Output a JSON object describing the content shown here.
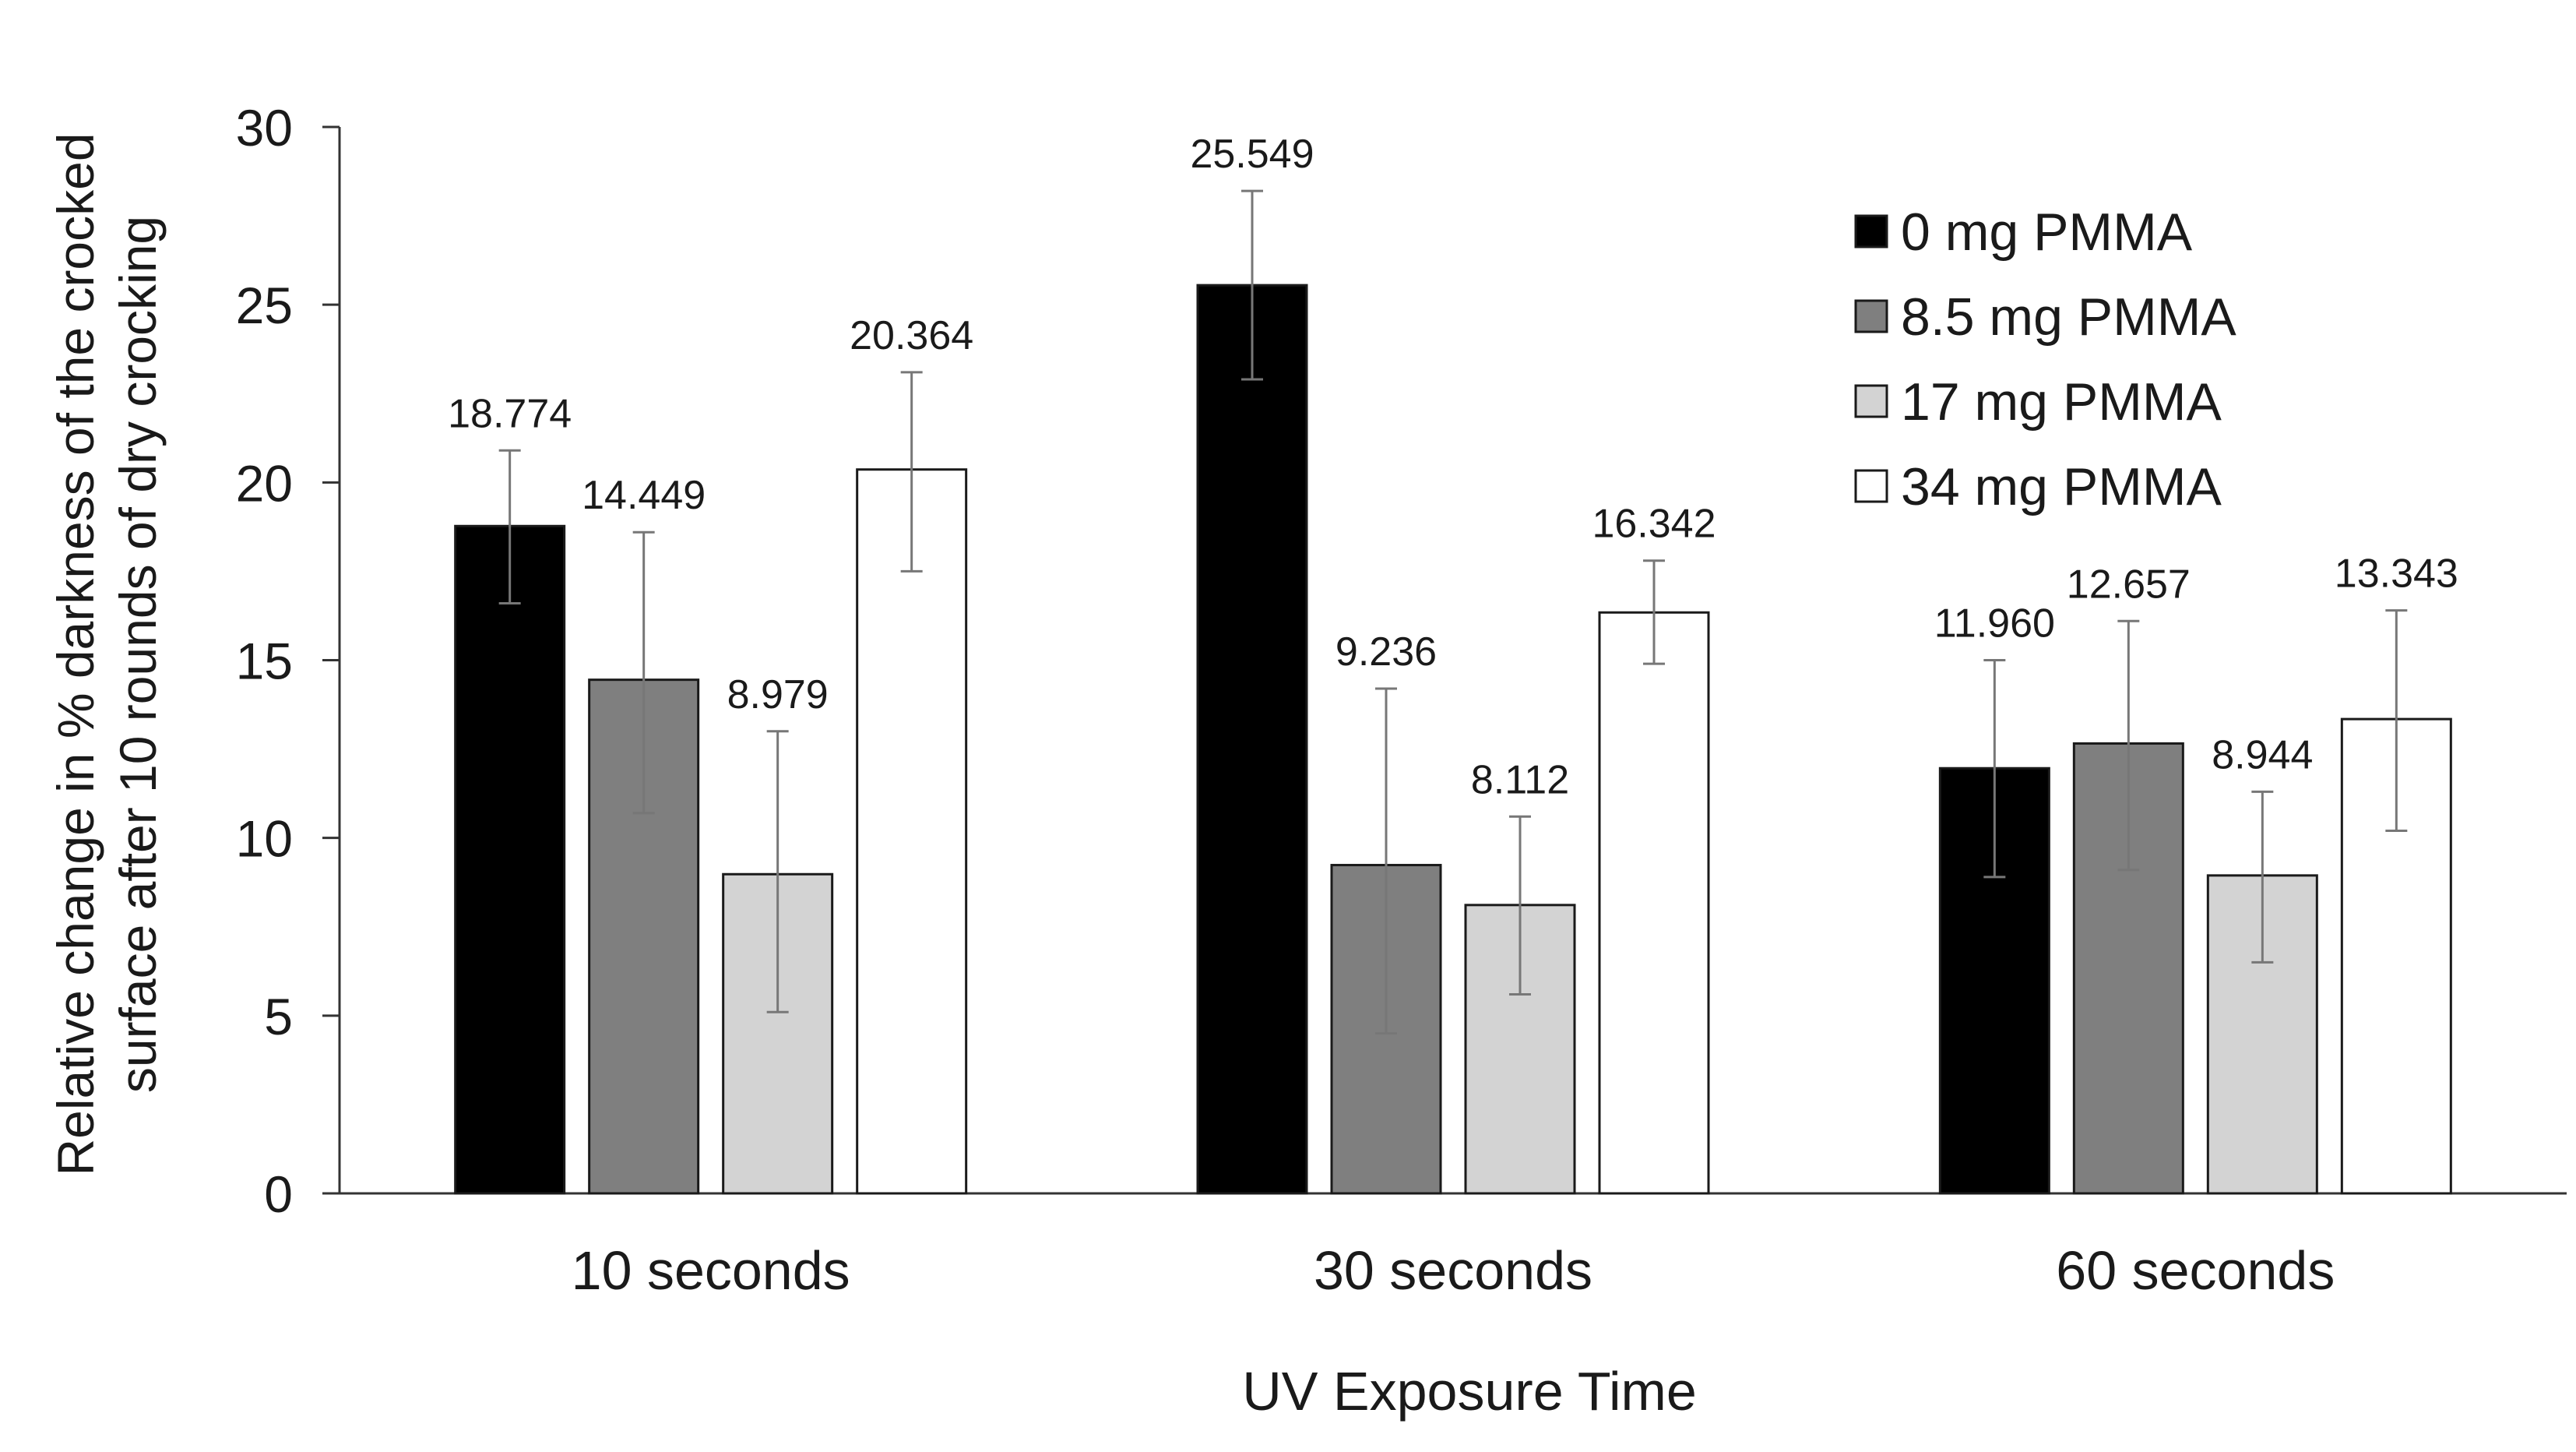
{
  "chart_data": {
    "type": "bar",
    "title": "",
    "xlabel": "UV Exposure Time",
    "ylabel_lines": [
      "Relative change in % darkness of the crocked",
      "surface after 10 rounds of dry crocking"
    ],
    "categories": [
      "10 seconds",
      "30 seconds",
      "60 seconds"
    ],
    "ylim": [
      0,
      30
    ],
    "yticks": [
      0,
      5,
      10,
      15,
      20,
      25,
      30
    ],
    "grid": false,
    "legend_position": "top-right",
    "series": [
      {
        "name": "0 mg PMMA",
        "color": "#000000",
        "values": [
          18.774,
          25.549,
          11.96
        ],
        "value_labels": [
          "18.774",
          "25.549",
          "11.960"
        ],
        "error_low": [
          16.6,
          22.9,
          8.9
        ],
        "error_high": [
          20.9,
          28.2,
          15.0
        ]
      },
      {
        "name": "8.5 mg PMMA",
        "color": "#7f7f7f",
        "values": [
          14.449,
          9.236,
          12.657
        ],
        "value_labels": [
          "14.449",
          "9.236",
          "12.657"
        ],
        "error_low": [
          10.7,
          4.5,
          9.1
        ],
        "error_high": [
          18.6,
          14.2,
          16.1
        ]
      },
      {
        "name": "17 mg PMMA",
        "color": "#d3d3d3",
        "values": [
          8.979,
          8.112,
          8.944
        ],
        "value_labels": [
          "8.979",
          "8.112",
          "8.944"
        ],
        "error_low": [
          5.1,
          5.6,
          6.5
        ],
        "error_high": [
          13.0,
          10.6,
          11.3
        ]
      },
      {
        "name": "34 mg PMMA",
        "color": "#ffffff",
        "values": [
          20.364,
          16.342,
          13.343
        ],
        "value_labels": [
          "20.364",
          "16.342",
          "13.343"
        ],
        "error_low": [
          17.5,
          14.9,
          10.2
        ],
        "error_high": [
          23.1,
          17.8,
          16.4
        ]
      }
    ]
  }
}
